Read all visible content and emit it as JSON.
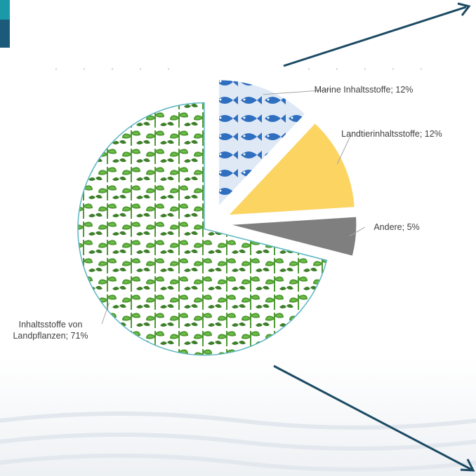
{
  "chart_data": {
    "type": "pie",
    "categories": [
      "Marine Inhaltsstoffe;",
      "Landtierinhaltsstoffe;",
      "Andere;",
      "Inhaltsstoffe von Landpflanzen;"
    ],
    "values": [
      12,
      12,
      5,
      71
    ],
    "value_labels": [
      "12%",
      "12%",
      "5%",
      "71%"
    ],
    "colors": [
      "#2f6fbf",
      "#fcd462",
      "#7f7f7f",
      "#6fbf4a"
    ]
  }
}
